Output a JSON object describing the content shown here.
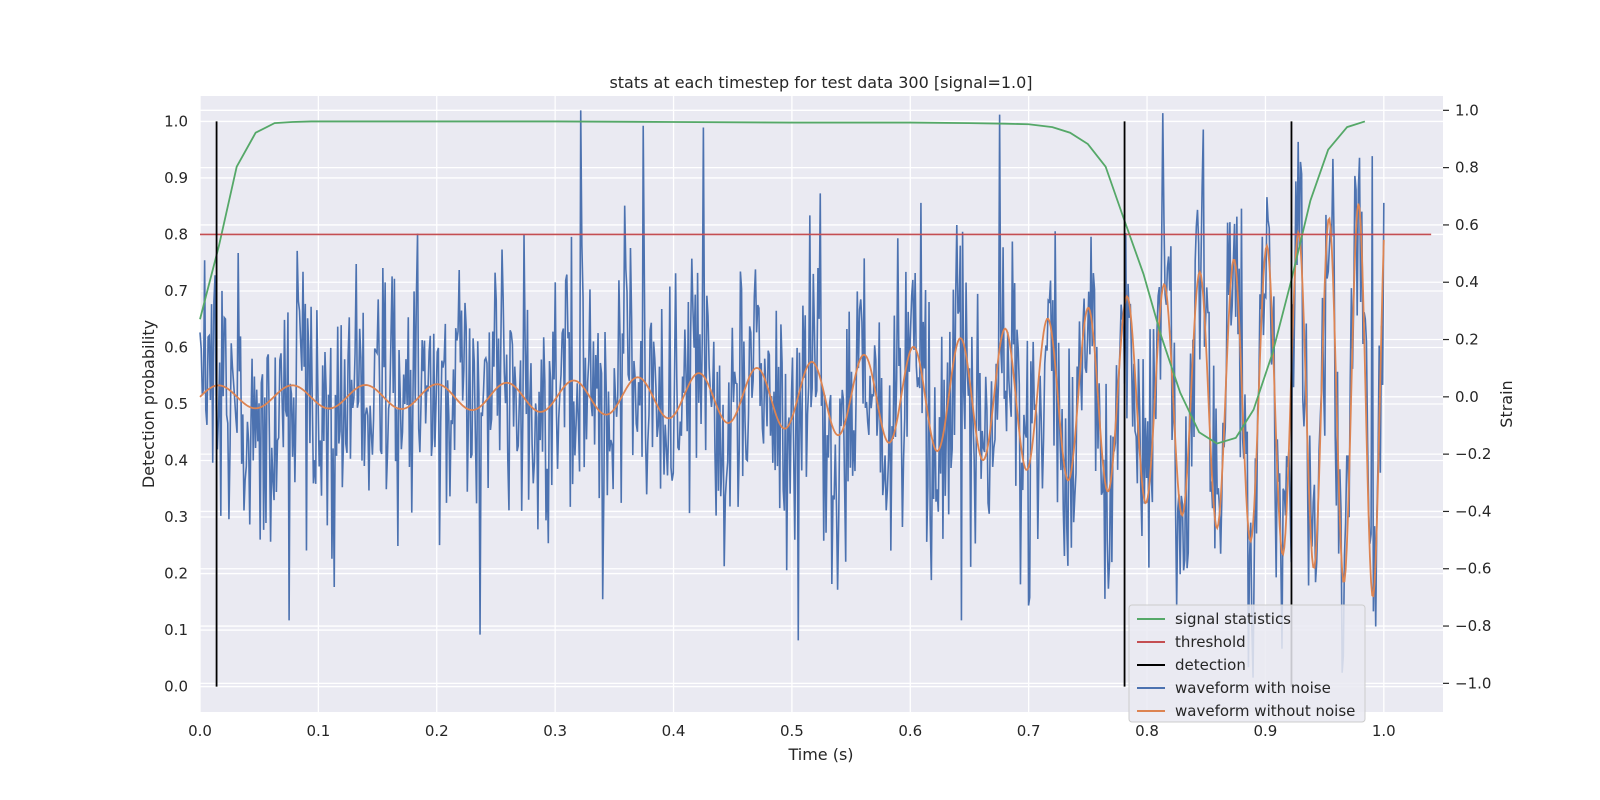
{
  "chart_data": {
    "type": "line",
    "title": "stats at each timestep for test data 300 [signal=1.0]",
    "xlabel": "Time (s)",
    "ylabel": "Detection probability",
    "y2label": "Strain",
    "xlim": [
      0.0,
      1.05
    ],
    "ylim": [
      -0.045,
      1.045
    ],
    "y2lim": [
      -1.1,
      1.05
    ],
    "x_ticks": [
      0.0,
      0.1,
      0.2,
      0.3,
      0.4,
      0.5,
      0.6,
      0.7,
      0.8,
      0.9,
      1.0
    ],
    "x_tick_labels": [
      "0.0",
      "0.1",
      "0.2",
      "0.3",
      "0.4",
      "0.5",
      "0.6",
      "0.7",
      "0.8",
      "0.9",
      "1.0"
    ],
    "y_ticks": [
      0.0,
      0.1,
      0.2,
      0.3,
      0.4,
      0.5,
      0.6,
      0.7,
      0.8,
      0.9,
      1.0
    ],
    "y_tick_labels": [
      "0.0",
      "0.1",
      "0.2",
      "0.3",
      "0.4",
      "0.5",
      "0.6",
      "0.7",
      "0.8",
      "0.9",
      "1.0"
    ],
    "y2_ticks": [
      -1.0,
      -0.8,
      -0.6,
      -0.4,
      -0.2,
      0.0,
      0.2,
      0.4,
      0.6,
      0.8,
      1.0
    ],
    "y2_tick_labels": [
      "−1.0",
      "−0.8",
      "−0.6",
      "−0.4",
      "−0.2",
      "0.0",
      "0.2",
      "0.4",
      "0.6",
      "0.8",
      "1.0"
    ],
    "grid": true,
    "legend_position": "bottom-right",
    "colors": {
      "background": "#eaeaf2",
      "grid": "#ffffff",
      "signal_statistics": "#55a868",
      "threshold": "#c44e52",
      "detection": "#000000",
      "waveform_with_noise": "#4c72b0",
      "waveform_without_noise": "#dd8452"
    },
    "series": [
      {
        "name": "signal statistics",
        "axis": "left",
        "x": [
          0.0,
          0.016,
          0.031,
          0.047,
          0.063,
          0.078,
          0.094,
          0.109,
          0.125,
          0.2,
          0.3,
          0.4,
          0.5,
          0.6,
          0.65,
          0.68,
          0.7,
          0.72,
          0.735,
          0.75,
          0.765,
          0.78,
          0.797,
          0.812,
          0.828,
          0.844,
          0.859,
          0.875,
          0.89,
          0.906,
          0.922,
          0.938,
          0.953,
          0.969,
          0.984
        ],
        "y": [
          0.65,
          0.78,
          0.92,
          0.98,
          0.997,
          0.999,
          1.0,
          1.0,
          1.0,
          1.0,
          1.0,
          0.999,
          0.998,
          0.998,
          0.997,
          0.996,
          0.995,
          0.99,
          0.98,
          0.96,
          0.92,
          0.83,
          0.73,
          0.62,
          0.52,
          0.45,
          0.43,
          0.44,
          0.49,
          0.59,
          0.72,
          0.86,
          0.95,
          0.99,
          1.0
        ]
      },
      {
        "name": "threshold",
        "axis": "left",
        "x": [
          0.0,
          1.04
        ],
        "y": [
          0.8,
          0.8
        ]
      },
      {
        "name": "detection",
        "axis": "left",
        "x": [
          0.014,
          0.781,
          0.922
        ],
        "y0": 0.0,
        "y1": 1.0
      },
      {
        "name": "waveform with noise",
        "axis": "right",
        "x_start": 0.0,
        "x_end": 1.0,
        "n_points": 1024,
        "noise_std": 0.24,
        "peaks": [
          {
            "x": 0.322,
            "y": 1.0
          },
          {
            "x": 0.425,
            "y": 0.94
          },
          {
            "x": 0.237,
            "y": -0.83
          },
          {
            "x": 0.505,
            "y": -0.85
          },
          {
            "x": 0.643,
            "y": -0.78
          },
          {
            "x": 0.075,
            "y": -0.78
          },
          {
            "x": 0.99,
            "y": 0.84
          },
          {
            "x": 0.93,
            "y": 0.82
          }
        ]
      },
      {
        "name": "waveform without noise",
        "axis": "right",
        "x_start": 0.0,
        "x_end": 1.0,
        "n_points": 1024,
        "amplitude_start": 0.04,
        "amplitude_end": 0.72,
        "freq_start_hz": 16,
        "freq_end_hz": 42
      }
    ]
  }
}
